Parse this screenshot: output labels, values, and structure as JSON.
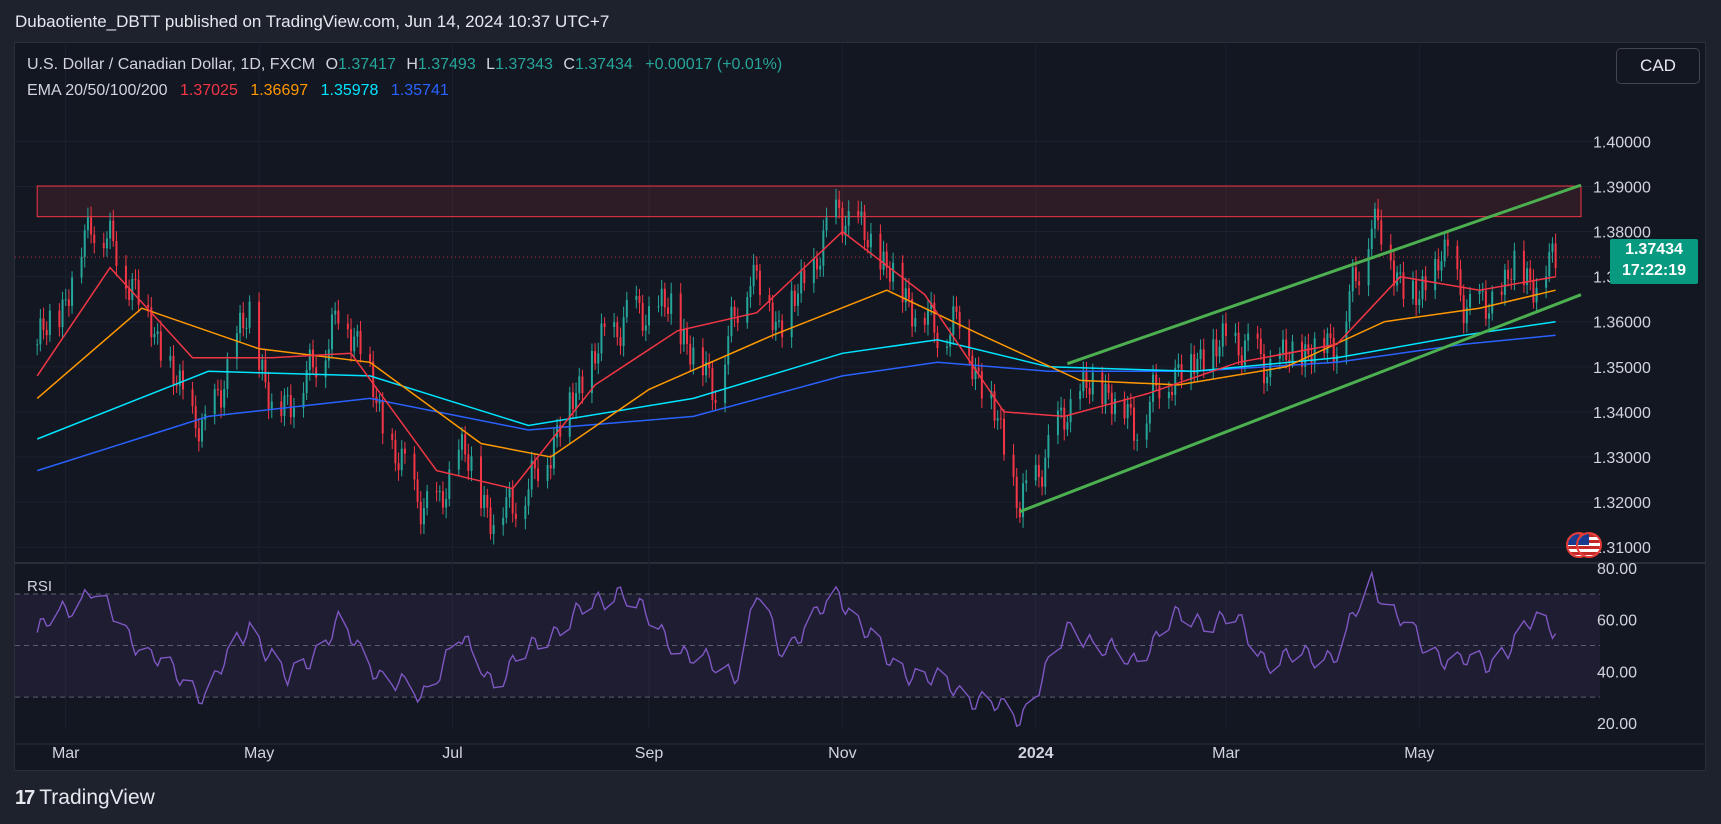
{
  "header": {
    "published": "Dubaotiente_DBTT published on TradingView.com, Jun 14, 2024 10:37 UTC+7"
  },
  "legend": {
    "title": "U.S. Dollar / Canadian Dollar, 1D, FXCM",
    "o_label": "O",
    "open": "1.37417",
    "h_label": "H",
    "high": "1.37493",
    "l_label": "L",
    "low": "1.37343",
    "c_label": "C",
    "close": "1.37434",
    "change": "+0.00017 (+0.01%)",
    "ema_label": "EMA 20/50/100/200",
    "ema20": "1.37025",
    "ema50": "1.36697",
    "ema100": "1.35978",
    "ema200": "1.35741"
  },
  "currency_button": "CAD",
  "price_tag": {
    "price": "1.37434",
    "countdown": "17:22:19"
  },
  "rsi_label": "RSI",
  "brand": {
    "logo": "17",
    "name": "TradingView"
  },
  "colors": {
    "up": "#26a69a",
    "down": "#f23645",
    "ema20": "#f23645",
    "ema50": "#ff9800",
    "ema100": "#00e5ff",
    "ema200": "#2962ff",
    "channel": "#4caf50",
    "rsi": "#7e57c2",
    "zone": "#f23645"
  },
  "chart_data": [
    {
      "type": "candlestick",
      "symbol": "USDCAD",
      "timeframe": "1D",
      "y_axis_labels": [
        "1.31000",
        "1.32000",
        "1.33000",
        "1.34000",
        "1.35000",
        "1.36000",
        "1.37000",
        "1.38000",
        "1.39000",
        "1.40000"
      ],
      "x_axis_labels": [
        "Mar",
        "May",
        "Jul",
        "Sep",
        "Nov",
        "2024",
        "Mar",
        "May"
      ],
      "ylim": [
        1.3065,
        1.4125
      ],
      "close_path": [
        {
          "x": "2023-02-20",
          "y": 1.355
        },
        {
          "x": "2023-03-01",
          "y": 1.365
        },
        {
          "x": "2023-03-09",
          "y": 1.383
        },
        {
          "x": "2023-03-17",
          "y": 1.375
        },
        {
          "x": "2023-03-28",
          "y": 1.36
        },
        {
          "x": "2023-04-04",
          "y": 1.347
        },
        {
          "x": "2023-04-14",
          "y": 1.335
        },
        {
          "x": "2023-04-21",
          "y": 1.35
        },
        {
          "x": "2023-04-28",
          "y": 1.362
        },
        {
          "x": "2023-05-05",
          "y": 1.34
        },
        {
          "x": "2023-05-15",
          "y": 1.346
        },
        {
          "x": "2023-05-26",
          "y": 1.361
        },
        {
          "x": "2023-06-02",
          "y": 1.356
        },
        {
          "x": "2023-06-09",
          "y": 1.336
        },
        {
          "x": "2023-06-20",
          "y": 1.321
        },
        {
          "x": "2023-06-27",
          "y": 1.318
        },
        {
          "x": "2023-07-03",
          "y": 1.333
        },
        {
          "x": "2023-07-14",
          "y": 1.316
        },
        {
          "x": "2023-07-20",
          "y": 1.32
        },
        {
          "x": "2023-07-27",
          "y": 1.325
        },
        {
          "x": "2023-08-08",
          "y": 1.343
        },
        {
          "x": "2023-08-18",
          "y": 1.356
        },
        {
          "x": "2023-08-25",
          "y": 1.361
        },
        {
          "x": "2023-09-08",
          "y": 1.363
        },
        {
          "x": "2023-09-14",
          "y": 1.354
        },
        {
          "x": "2023-09-22",
          "y": 1.346
        },
        {
          "x": "2023-10-03",
          "y": 1.372
        },
        {
          "x": "2023-10-12",
          "y": 1.359
        },
        {
          "x": "2023-10-20",
          "y": 1.368
        },
        {
          "x": "2023-10-31",
          "y": 1.385
        },
        {
          "x": "2023-11-09",
          "y": 1.378
        },
        {
          "x": "2023-11-16",
          "y": 1.371
        },
        {
          "x": "2023-11-23",
          "y": 1.364
        },
        {
          "x": "2023-12-01",
          "y": 1.358
        },
        {
          "x": "2023-12-08",
          "y": 1.36
        },
        {
          "x": "2023-12-14",
          "y": 1.348
        },
        {
          "x": "2023-12-20",
          "y": 1.338
        },
        {
          "x": "2023-12-27",
          "y": 1.318
        },
        {
          "x": "2024-01-05",
          "y": 1.332
        },
        {
          "x": "2024-01-15",
          "y": 1.345
        },
        {
          "x": "2024-01-24",
          "y": 1.345
        },
        {
          "x": "2024-02-01",
          "y": 1.337
        },
        {
          "x": "2024-02-12",
          "y": 1.348
        },
        {
          "x": "2024-02-22",
          "y": 1.352
        },
        {
          "x": "2024-03-04",
          "y": 1.356
        },
        {
          "x": "2024-03-14",
          "y": 1.35
        },
        {
          "x": "2024-03-25",
          "y": 1.353
        },
        {
          "x": "2024-04-05",
          "y": 1.356
        },
        {
          "x": "2024-04-12",
          "y": 1.371
        },
        {
          "x": "2024-04-16",
          "y": 1.384
        },
        {
          "x": "2024-04-23",
          "y": 1.372
        },
        {
          "x": "2024-05-01",
          "y": 1.364
        },
        {
          "x": "2024-05-08",
          "y": 1.376
        },
        {
          "x": "2024-05-15",
          "y": 1.365
        },
        {
          "x": "2024-05-22",
          "y": 1.362
        },
        {
          "x": "2024-05-31",
          "y": 1.372
        },
        {
          "x": "2024-06-07",
          "y": 1.369
        },
        {
          "x": "2024-06-13",
          "y": 1.374
        }
      ],
      "ema20": [
        {
          "x": "2023-02-20",
          "y": 1.348
        },
        {
          "x": "2023-03-15",
          "y": 1.372
        },
        {
          "x": "2023-04-10",
          "y": 1.352
        },
        {
          "x": "2023-05-05",
          "y": 1.352
        },
        {
          "x": "2023-05-30",
          "y": 1.353
        },
        {
          "x": "2023-06-26",
          "y": 1.327
        },
        {
          "x": "2023-07-20",
          "y": 1.323
        },
        {
          "x": "2023-08-15",
          "y": 1.346
        },
        {
          "x": "2023-09-10",
          "y": 1.358
        },
        {
          "x": "2023-10-05",
          "y": 1.362
        },
        {
          "x": "2023-11-01",
          "y": 1.38
        },
        {
          "x": "2023-11-27",
          "y": 1.366
        },
        {
          "x": "2023-12-22",
          "y": 1.34
        },
        {
          "x": "2024-01-10",
          "y": 1.339
        },
        {
          "x": "2024-02-05",
          "y": 1.344
        },
        {
          "x": "2024-03-05",
          "y": 1.351
        },
        {
          "x": "2024-04-05",
          "y": 1.355
        },
        {
          "x": "2024-04-25",
          "y": 1.37
        },
        {
          "x": "2024-05-20",
          "y": 1.367
        },
        {
          "x": "2024-06-13",
          "y": 1.37
        }
      ],
      "ema50": [
        {
          "x": "2023-02-20",
          "y": 1.343
        },
        {
          "x": "2023-03-25",
          "y": 1.363
        },
        {
          "x": "2023-05-01",
          "y": 1.354
        },
        {
          "x": "2023-06-05",
          "y": 1.351
        },
        {
          "x": "2023-07-10",
          "y": 1.333
        },
        {
          "x": "2023-08-01",
          "y": 1.33
        },
        {
          "x": "2023-09-01",
          "y": 1.345
        },
        {
          "x": "2023-10-10",
          "y": 1.357
        },
        {
          "x": "2023-11-15",
          "y": 1.367
        },
        {
          "x": "2023-12-15",
          "y": 1.357
        },
        {
          "x": "2024-01-15",
          "y": 1.347
        },
        {
          "x": "2024-02-15",
          "y": 1.346
        },
        {
          "x": "2024-03-20",
          "y": 1.35
        },
        {
          "x": "2024-04-20",
          "y": 1.36
        },
        {
          "x": "2024-05-20",
          "y": 1.363
        },
        {
          "x": "2024-06-13",
          "y": 1.367
        }
      ],
      "ema100": [
        {
          "x": "2023-02-20",
          "y": 1.334
        },
        {
          "x": "2023-04-15",
          "y": 1.349
        },
        {
          "x": "2023-06-05",
          "y": 1.348
        },
        {
          "x": "2023-07-25",
          "y": 1.337
        },
        {
          "x": "2023-09-15",
          "y": 1.343
        },
        {
          "x": "2023-11-01",
          "y": 1.353
        },
        {
          "x": "2023-12-01",
          "y": 1.356
        },
        {
          "x": "2024-01-05",
          "y": 1.35
        },
        {
          "x": "2024-02-20",
          "y": 1.349
        },
        {
          "x": "2024-04-05",
          "y": 1.352
        },
        {
          "x": "2024-05-15",
          "y": 1.357
        },
        {
          "x": "2024-06-13",
          "y": 1.36
        }
      ],
      "ema200": [
        {
          "x": "2023-02-20",
          "y": 1.327
        },
        {
          "x": "2023-04-15",
          "y": 1.339
        },
        {
          "x": "2023-06-05",
          "y": 1.343
        },
        {
          "x": "2023-07-25",
          "y": 1.336
        },
        {
          "x": "2023-09-15",
          "y": 1.339
        },
        {
          "x": "2023-11-01",
          "y": 1.348
        },
        {
          "x": "2023-12-01",
          "y": 1.351
        },
        {
          "x": "2024-01-05",
          "y": 1.349
        },
        {
          "x": "2024-02-20",
          "y": 1.349
        },
        {
          "x": "2024-04-05",
          "y": 1.351
        },
        {
          "x": "2024-05-15",
          "y": 1.355
        },
        {
          "x": "2024-06-13",
          "y": 1.357
        }
      ],
      "resistance_zone": {
        "x_start": "2023-02-20",
        "x_end": "2024-06-21",
        "y_low": 1.3833,
        "y_high": 1.3901
      },
      "current_price_line": 1.37434,
      "channel_upper": {
        "x_start": "2024-01-11",
        "y_start": 1.3507,
        "x_end": "2024-06-21",
        "y_end": 1.3903
      },
      "channel_lower": {
        "x_start": "2023-12-27",
        "y_start": 1.3179,
        "x_end": "2024-06-21",
        "y_end": 1.366
      }
    },
    {
      "type": "line",
      "name": "RSI",
      "y_axis_labels": [
        "20.00",
        "40.00",
        "60.00",
        "80.00"
      ],
      "ylim": [
        18,
        82
      ],
      "bands": [
        30,
        50,
        70
      ],
      "values": [
        {
          "x": "2023-02-20",
          "y": 55
        },
        {
          "x": "2023-03-09",
          "y": 72
        },
        {
          "x": "2023-03-20",
          "y": 55
        },
        {
          "x": "2023-04-05",
          "y": 38
        },
        {
          "x": "2023-04-14",
          "y": 31
        },
        {
          "x": "2023-04-28",
          "y": 58
        },
        {
          "x": "2023-05-10",
          "y": 36
        },
        {
          "x": "2023-05-26",
          "y": 58
        },
        {
          "x": "2023-06-09",
          "y": 38
        },
        {
          "x": "2023-06-21",
          "y": 30
        },
        {
          "x": "2023-07-03",
          "y": 53
        },
        {
          "x": "2023-07-14",
          "y": 36
        },
        {
          "x": "2023-08-01",
          "y": 55
        },
        {
          "x": "2023-08-22",
          "y": 72
        },
        {
          "x": "2023-09-14",
          "y": 45
        },
        {
          "x": "2023-09-29",
          "y": 40
        },
        {
          "x": "2023-10-05",
          "y": 70
        },
        {
          "x": "2023-10-13",
          "y": 48
        },
        {
          "x": "2023-10-31",
          "y": 70
        },
        {
          "x": "2023-11-16",
          "y": 43
        },
        {
          "x": "2023-12-05",
          "y": 34
        },
        {
          "x": "2023-12-27",
          "y": 22
        },
        {
          "x": "2024-01-12",
          "y": 57
        },
        {
          "x": "2024-01-31",
          "y": 43
        },
        {
          "x": "2024-02-13",
          "y": 60
        },
        {
          "x": "2024-03-04",
          "y": 60
        },
        {
          "x": "2024-03-14",
          "y": 44
        },
        {
          "x": "2024-04-05",
          "y": 47
        },
        {
          "x": "2024-04-16",
          "y": 75
        },
        {
          "x": "2024-05-03",
          "y": 48
        },
        {
          "x": "2024-05-22",
          "y": 42
        },
        {
          "x": "2024-06-06",
          "y": 59
        },
        {
          "x": "2024-06-13",
          "y": 57
        }
      ]
    }
  ]
}
